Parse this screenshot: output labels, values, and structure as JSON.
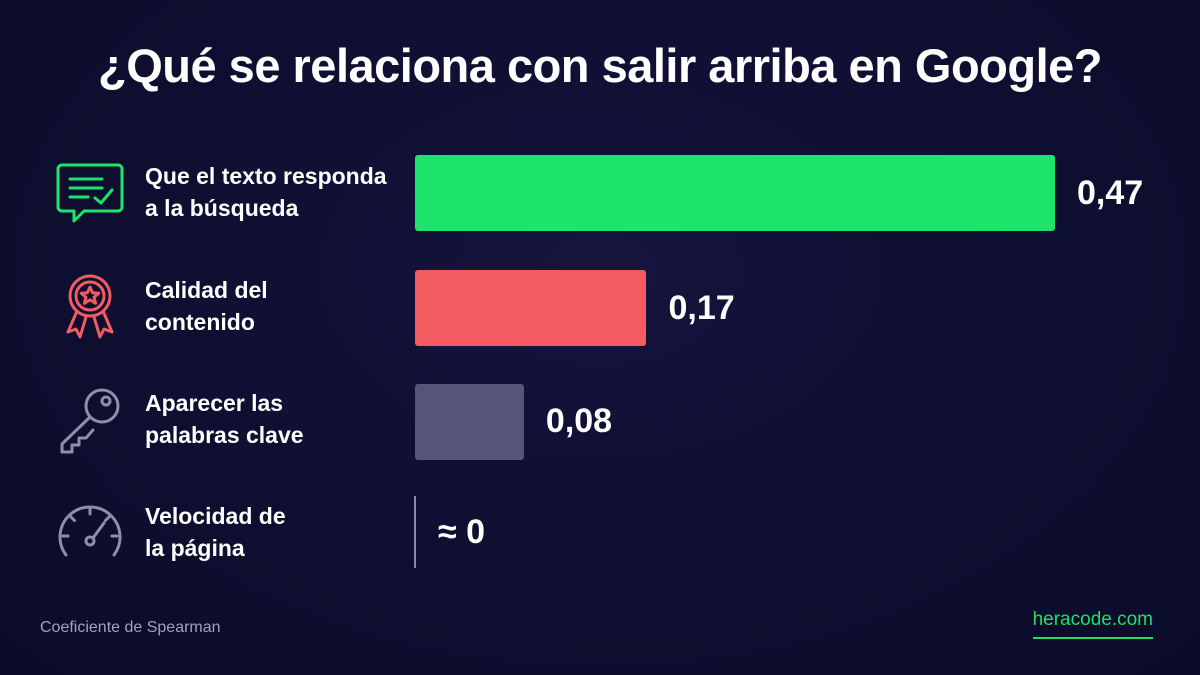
{
  "title": "¿Qué se relaciona con salir arriba en Google?",
  "footer_note": "Coeficiente de Spearman",
  "brand": "heracode.com",
  "colors": {
    "background": "#0f0f33",
    "green": "#1ee46b",
    "red": "#f45b61",
    "slate": "#55557a",
    "icon_gray": "#8f8fa8",
    "brand": "#22dd66"
  },
  "icons": [
    "chat-check-icon",
    "award-ribbon-icon",
    "key-icon",
    "speedometer-icon"
  ],
  "chart_data": {
    "type": "bar",
    "orientation": "horizontal",
    "categories": [
      "Que el texto responda a la búsqueda",
      "Calidad del contenido",
      "Aparecer las palabras clave",
      "Velocidad de la página"
    ],
    "category_lines": [
      [
        "Que el texto responda",
        "a la búsqueda"
      ],
      [
        "Calidad del",
        "contenido"
      ],
      [
        "Aparecer las",
        "palabras clave"
      ],
      [
        "Velocidad de",
        "la página"
      ]
    ],
    "values": [
      0.47,
      0.17,
      0.08,
      0
    ],
    "value_labels": [
      "0,47",
      "0,17",
      "0,08",
      "≈ 0"
    ],
    "bar_colors": [
      "#1ee46b",
      "#f45b61",
      "#55557a",
      "#8a8aa6"
    ],
    "xlim": [
      0,
      0.47
    ],
    "grid": false,
    "legend": "none"
  }
}
